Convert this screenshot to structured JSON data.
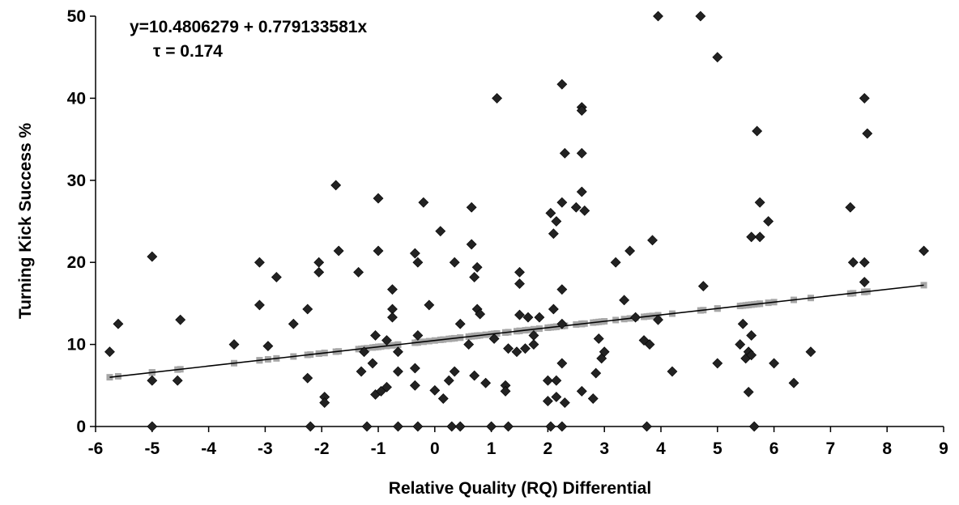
{
  "chart_data": {
    "type": "scatter",
    "title": "",
    "xlabel": "Relative Quality (RQ) Differential",
    "ylabel": "Turning Kick Success %",
    "xlim": [
      -6,
      9
    ],
    "ylim": [
      0,
      50
    ],
    "x_ticks": [
      "-6",
      "-5",
      "-4",
      "-3",
      "-2",
      "-1",
      "0",
      "1",
      "2",
      "3",
      "4",
      "5",
      "6",
      "7",
      "8",
      "9"
    ],
    "y_ticks": [
      "0",
      "10",
      "20",
      "30",
      "40",
      "50"
    ],
    "grid": false,
    "legend": "none",
    "annotations": {
      "equation": "y=10.4806279 + 0.779133581x",
      "tau": "τ = 0.174"
    },
    "colors": {
      "points": "#222222",
      "fitted_points": "#a6a6a6",
      "trendline": "#000000"
    },
    "fit": {
      "intercept": 10.4806279,
      "slope": 0.779133581
    },
    "points": [
      [
        -5.75,
        9.1
      ],
      [
        -5.6,
        12.5
      ],
      [
        -5.0,
        20.7
      ],
      [
        -5.0,
        5.6
      ],
      [
        -5.0,
        0.0
      ],
      [
        -4.55,
        5.6
      ],
      [
        -4.5,
        13.0
      ],
      [
        -3.55,
        10.0
      ],
      [
        -3.1,
        20.0
      ],
      [
        -3.1,
        14.8
      ],
      [
        -2.95,
        9.8
      ],
      [
        -2.8,
        18.2
      ],
      [
        -2.5,
        12.5
      ],
      [
        -2.25,
        14.3
      ],
      [
        -2.25,
        5.9
      ],
      [
        -2.2,
        0.0
      ],
      [
        -2.05,
        20.0
      ],
      [
        -2.05,
        18.8
      ],
      [
        -1.95,
        3.6
      ],
      [
        -1.95,
        2.9
      ],
      [
        -1.75,
        29.4
      ],
      [
        -1.7,
        21.4
      ],
      [
        -1.35,
        18.8
      ],
      [
        -1.3,
        6.7
      ],
      [
        -1.25,
        9.1
      ],
      [
        -1.2,
        0.0
      ],
      [
        -1.1,
        7.7
      ],
      [
        -1.05,
        11.1
      ],
      [
        -1.05,
        3.9
      ],
      [
        -1.0,
        27.8
      ],
      [
        -1.0,
        21.4
      ],
      [
        -0.95,
        4.3
      ],
      [
        -0.85,
        4.8
      ],
      [
        -0.85,
        10.5
      ],
      [
        -0.75,
        16.7
      ],
      [
        -0.75,
        14.3
      ],
      [
        -0.75,
        13.3
      ],
      [
        -0.65,
        9.1
      ],
      [
        -0.65,
        6.7
      ],
      [
        -0.65,
        0.0
      ],
      [
        -0.35,
        21.1
      ],
      [
        -0.35,
        7.1
      ],
      [
        -0.35,
        5.0
      ],
      [
        -0.3,
        20.0
      ],
      [
        -0.3,
        11.1
      ],
      [
        -0.3,
        0.0
      ],
      [
        -0.2,
        27.3
      ],
      [
        -0.1,
        14.8
      ],
      [
        0.0,
        4.4
      ],
      [
        0.1,
        23.8
      ],
      [
        0.15,
        3.4
      ],
      [
        0.25,
        5.6
      ],
      [
        0.3,
        0.0
      ],
      [
        0.35,
        20.0
      ],
      [
        0.35,
        6.7
      ],
      [
        0.45,
        12.5
      ],
      [
        0.45,
        0.0
      ],
      [
        0.6,
        10.0
      ],
      [
        0.65,
        26.7
      ],
      [
        0.65,
        22.2
      ],
      [
        0.7,
        18.2
      ],
      [
        0.7,
        6.2
      ],
      [
        0.75,
        19.4
      ],
      [
        0.75,
        14.3
      ],
      [
        0.8,
        13.7
      ],
      [
        0.9,
        5.3
      ],
      [
        1.0,
        0.0
      ],
      [
        1.05,
        10.7
      ],
      [
        1.1,
        40.0
      ],
      [
        1.25,
        5.0
      ],
      [
        1.25,
        4.3
      ],
      [
        1.3,
        9.5
      ],
      [
        1.3,
        0.0
      ],
      [
        1.45,
        9.1
      ],
      [
        1.5,
        18.8
      ],
      [
        1.5,
        17.4
      ],
      [
        1.5,
        13.6
      ],
      [
        1.6,
        9.5
      ],
      [
        1.65,
        13.3
      ],
      [
        1.75,
        11.1
      ],
      [
        1.75,
        10.0
      ],
      [
        1.85,
        13.3
      ],
      [
        2.0,
        5.6
      ],
      [
        2.0,
        3.1
      ],
      [
        2.05,
        26.0
      ],
      [
        2.05,
        0.0
      ],
      [
        2.1,
        23.5
      ],
      [
        2.1,
        14.3
      ],
      [
        2.15,
        25.0
      ],
      [
        2.15,
        5.6
      ],
      [
        2.15,
        3.6
      ],
      [
        2.25,
        41.7
      ],
      [
        2.25,
        27.3
      ],
      [
        2.25,
        16.7
      ],
      [
        2.25,
        12.5
      ],
      [
        2.25,
        7.7
      ],
      [
        2.25,
        0.0
      ],
      [
        2.3,
        33.3
      ],
      [
        2.3,
        2.9
      ],
      [
        2.5,
        26.7
      ],
      [
        2.6,
        38.9
      ],
      [
        2.6,
        38.5
      ],
      [
        2.6,
        33.3
      ],
      [
        2.6,
        28.6
      ],
      [
        2.65,
        26.3
      ],
      [
        2.6,
        4.3
      ],
      [
        2.8,
        3.4
      ],
      [
        2.85,
        6.5
      ],
      [
        2.9,
        10.7
      ],
      [
        2.95,
        8.3
      ],
      [
        3.0,
        9.1
      ],
      [
        3.2,
        20.0
      ],
      [
        3.35,
        15.4
      ],
      [
        3.45,
        21.4
      ],
      [
        3.55,
        13.3
      ],
      [
        3.7,
        10.5
      ],
      [
        3.75,
        0.0
      ],
      [
        3.8,
        10.0
      ],
      [
        3.85,
        22.7
      ],
      [
        3.95,
        13.0
      ],
      [
        3.95,
        50.0
      ],
      [
        4.2,
        6.7
      ],
      [
        4.7,
        50.0
      ],
      [
        4.75,
        17.1
      ],
      [
        5.0,
        45.0
      ],
      [
        5.0,
        7.7
      ],
      [
        5.4,
        10.0
      ],
      [
        5.45,
        12.5
      ],
      [
        5.5,
        8.3
      ],
      [
        5.55,
        9.1
      ],
      [
        5.55,
        4.2
      ],
      [
        5.6,
        23.1
      ],
      [
        5.6,
        11.1
      ],
      [
        5.6,
        8.7
      ],
      [
        5.65,
        0.0
      ],
      [
        5.7,
        36.0
      ],
      [
        5.75,
        27.3
      ],
      [
        5.75,
        23.1
      ],
      [
        5.9,
        25.0
      ],
      [
        6.0,
        7.7
      ],
      [
        6.35,
        5.3
      ],
      [
        6.65,
        9.1
      ],
      [
        7.35,
        26.7
      ],
      [
        7.4,
        20.0
      ],
      [
        7.6,
        40.0
      ],
      [
        7.65,
        35.7
      ],
      [
        7.6,
        20.0
      ],
      [
        7.6,
        17.6
      ],
      [
        8.65,
        21.4
      ]
    ]
  }
}
